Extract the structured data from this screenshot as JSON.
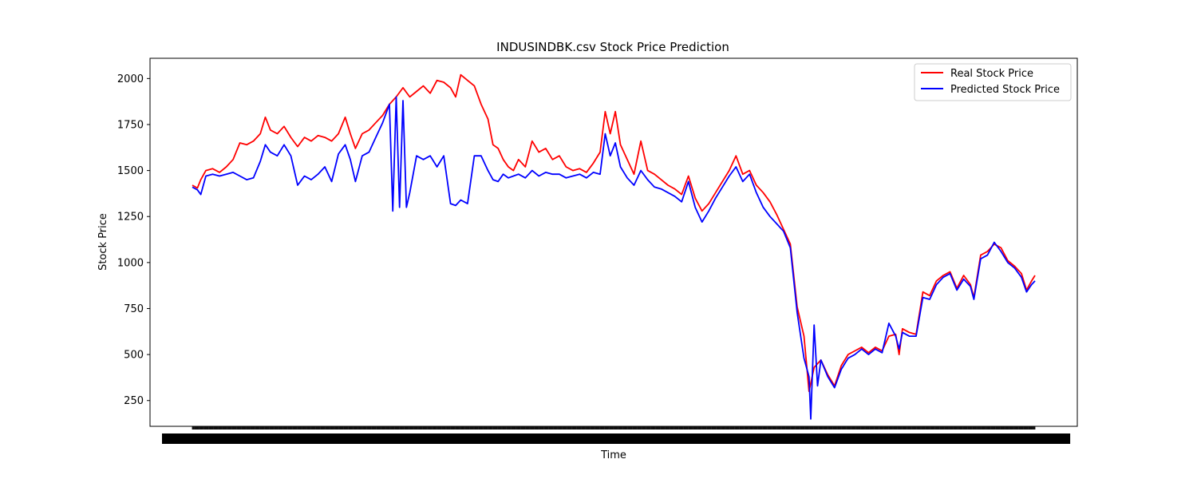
{
  "chart_data": {
    "type": "line",
    "title": "INDUSINDBK.csv Stock Price Prediction",
    "xlabel": "Time",
    "ylabel": "Stock Price",
    "ylim": [
      110,
      2110
    ],
    "yticks": [
      250,
      500,
      750,
      1000,
      1250,
      1500,
      1750,
      2000
    ],
    "x_count": 1238,
    "grid": false,
    "legend": "top-right",
    "series": [
      {
        "name": "Real Stock Price",
        "color": "#ff0000",
        "points": [
          [
            0,
            1420
          ],
          [
            15,
            1405
          ],
          [
            25,
            1450
          ],
          [
            40,
            1500
          ],
          [
            60,
            1510
          ],
          [
            80,
            1490
          ],
          [
            100,
            1520
          ],
          [
            120,
            1560
          ],
          [
            140,
            1650
          ],
          [
            160,
            1640
          ],
          [
            180,
            1660
          ],
          [
            200,
            1700
          ],
          [
            215,
            1790
          ],
          [
            230,
            1720
          ],
          [
            250,
            1700
          ],
          [
            270,
            1740
          ],
          [
            290,
            1680
          ],
          [
            310,
            1630
          ],
          [
            330,
            1680
          ],
          [
            350,
            1660
          ],
          [
            370,
            1690
          ],
          [
            390,
            1680
          ],
          [
            410,
            1660
          ],
          [
            430,
            1700
          ],
          [
            450,
            1790
          ],
          [
            465,
            1700
          ],
          [
            480,
            1620
          ],
          [
            500,
            1700
          ],
          [
            520,
            1720
          ],
          [
            540,
            1760
          ],
          [
            560,
            1800
          ],
          [
            580,
            1860
          ],
          [
            600,
            1900
          ],
          [
            620,
            1950
          ],
          [
            640,
            1900
          ],
          [
            660,
            1930
          ],
          [
            680,
            1960
          ],
          [
            700,
            1920
          ],
          [
            720,
            1990
          ],
          [
            740,
            1980
          ],
          [
            760,
            1950
          ],
          [
            775,
            1900
          ],
          [
            790,
            2020
          ],
          [
            810,
            1990
          ],
          [
            830,
            1960
          ],
          [
            850,
            1860
          ],
          [
            870,
            1780
          ],
          [
            885,
            1640
          ],
          [
            900,
            1620
          ],
          [
            915,
            1560
          ],
          [
            930,
            1520
          ],
          [
            945,
            1500
          ],
          [
            960,
            1560
          ],
          [
            980,
            1520
          ],
          [
            1000,
            1660
          ],
          [
            1020,
            1600
          ],
          [
            1040,
            1620
          ],
          [
            1060,
            1560
          ],
          [
            1080,
            1580
          ],
          [
            1100,
            1520
          ],
          [
            1120,
            1500
          ],
          [
            1140,
            1510
          ],
          [
            1160,
            1490
          ],
          [
            1180,
            1540
          ],
          [
            1200,
            1600
          ],
          [
            1215,
            1820
          ],
          [
            1230,
            1700
          ],
          [
            1245,
            1820
          ],
          [
            1260,
            1640
          ],
          [
            1280,
            1560
          ],
          [
            1300,
            1480
          ],
          [
            1320,
            1660
          ],
          [
            1340,
            1500
          ],
          [
            1360,
            1480
          ],
          [
            1380,
            1450
          ],
          [
            1400,
            1420
          ],
          [
            1420,
            1400
          ],
          [
            1440,
            1370
          ],
          [
            1460,
            1470
          ],
          [
            1480,
            1350
          ],
          [
            1500,
            1280
          ],
          [
            1520,
            1320
          ],
          [
            1540,
            1380
          ],
          [
            1560,
            1440
          ],
          [
            1580,
            1500
          ],
          [
            1600,
            1580
          ],
          [
            1620,
            1480
          ],
          [
            1640,
            1500
          ],
          [
            1660,
            1420
          ],
          [
            1680,
            1380
          ],
          [
            1700,
            1330
          ],
          [
            1720,
            1260
          ],
          [
            1740,
            1180
          ],
          [
            1760,
            1100
          ],
          [
            1780,
            760
          ],
          [
            1800,
            600
          ],
          [
            1815,
            300
          ],
          [
            1830,
            430
          ],
          [
            1850,
            470
          ],
          [
            1870,
            390
          ],
          [
            1890,
            330
          ],
          [
            1910,
            440
          ],
          [
            1930,
            500
          ],
          [
            1950,
            520
          ],
          [
            1970,
            540
          ],
          [
            1990,
            510
          ],
          [
            2010,
            540
          ],
          [
            2030,
            520
          ],
          [
            2050,
            600
          ],
          [
            2070,
            610
          ],
          [
            2080,
            500
          ],
          [
            2090,
            640
          ],
          [
            2110,
            620
          ],
          [
            2130,
            610
          ],
          [
            2150,
            840
          ],
          [
            2170,
            820
          ],
          [
            2190,
            900
          ],
          [
            2210,
            930
          ],
          [
            2230,
            950
          ],
          [
            2250,
            860
          ],
          [
            2270,
            930
          ],
          [
            2290,
            880
          ],
          [
            2300,
            810
          ],
          [
            2320,
            1040
          ],
          [
            2340,
            1060
          ],
          [
            2360,
            1100
          ],
          [
            2380,
            1080
          ],
          [
            2400,
            1010
          ],
          [
            2420,
            980
          ],
          [
            2440,
            940
          ],
          [
            2455,
            850
          ],
          [
            2470,
            900
          ],
          [
            2480,
            930
          ]
        ]
      },
      {
        "name": "Predicted Stock Price",
        "color": "#0000ff",
        "points": [
          [
            0,
            1410
          ],
          [
            15,
            1395
          ],
          [
            25,
            1370
          ],
          [
            40,
            1470
          ],
          [
            60,
            1480
          ],
          [
            80,
            1470
          ],
          [
            100,
            1480
          ],
          [
            120,
            1490
          ],
          [
            140,
            1470
          ],
          [
            160,
            1450
          ],
          [
            180,
            1460
          ],
          [
            200,
            1550
          ],
          [
            215,
            1640
          ],
          [
            230,
            1600
          ],
          [
            250,
            1580
          ],
          [
            270,
            1640
          ],
          [
            290,
            1580
          ],
          [
            310,
            1420
          ],
          [
            330,
            1470
          ],
          [
            350,
            1450
          ],
          [
            370,
            1480
          ],
          [
            390,
            1520
          ],
          [
            410,
            1440
          ],
          [
            430,
            1590
          ],
          [
            450,
            1640
          ],
          [
            465,
            1560
          ],
          [
            480,
            1440
          ],
          [
            500,
            1580
          ],
          [
            520,
            1600
          ],
          [
            540,
            1680
          ],
          [
            560,
            1760
          ],
          [
            580,
            1860
          ],
          [
            590,
            1280
          ],
          [
            600,
            1900
          ],
          [
            610,
            1300
          ],
          [
            620,
            1880
          ],
          [
            630,
            1300
          ],
          [
            640,
            1380
          ],
          [
            660,
            1580
          ],
          [
            680,
            1560
          ],
          [
            700,
            1580
          ],
          [
            720,
            1520
          ],
          [
            740,
            1580
          ],
          [
            760,
            1320
          ],
          [
            775,
            1310
          ],
          [
            790,
            1340
          ],
          [
            810,
            1320
          ],
          [
            830,
            1580
          ],
          [
            850,
            1580
          ],
          [
            870,
            1500
          ],
          [
            885,
            1450
          ],
          [
            900,
            1440
          ],
          [
            915,
            1480
          ],
          [
            930,
            1460
          ],
          [
            945,
            1470
          ],
          [
            960,
            1480
          ],
          [
            980,
            1460
          ],
          [
            1000,
            1500
          ],
          [
            1020,
            1470
          ],
          [
            1040,
            1490
          ],
          [
            1060,
            1480
          ],
          [
            1080,
            1480
          ],
          [
            1100,
            1460
          ],
          [
            1120,
            1470
          ],
          [
            1140,
            1480
          ],
          [
            1160,
            1460
          ],
          [
            1180,
            1490
          ],
          [
            1200,
            1480
          ],
          [
            1215,
            1700
          ],
          [
            1230,
            1580
          ],
          [
            1245,
            1650
          ],
          [
            1260,
            1520
          ],
          [
            1280,
            1460
          ],
          [
            1300,
            1420
          ],
          [
            1320,
            1500
          ],
          [
            1340,
            1450
          ],
          [
            1360,
            1410
          ],
          [
            1380,
            1400
          ],
          [
            1400,
            1380
          ],
          [
            1420,
            1360
          ],
          [
            1440,
            1330
          ],
          [
            1460,
            1440
          ],
          [
            1480,
            1300
          ],
          [
            1500,
            1220
          ],
          [
            1520,
            1280
          ],
          [
            1540,
            1350
          ],
          [
            1560,
            1410
          ],
          [
            1580,
            1470
          ],
          [
            1600,
            1520
          ],
          [
            1620,
            1440
          ],
          [
            1640,
            1480
          ],
          [
            1660,
            1380
          ],
          [
            1680,
            1300
          ],
          [
            1700,
            1250
          ],
          [
            1720,
            1210
          ],
          [
            1740,
            1170
          ],
          [
            1760,
            1080
          ],
          [
            1780,
            730
          ],
          [
            1800,
            480
          ],
          [
            1815,
            380
          ],
          [
            1820,
            150
          ],
          [
            1830,
            660
          ],
          [
            1840,
            330
          ],
          [
            1850,
            470
          ],
          [
            1870,
            380
          ],
          [
            1890,
            320
          ],
          [
            1910,
            420
          ],
          [
            1930,
            480
          ],
          [
            1950,
            500
          ],
          [
            1970,
            530
          ],
          [
            1990,
            500
          ],
          [
            2010,
            530
          ],
          [
            2030,
            510
          ],
          [
            2050,
            670
          ],
          [
            2070,
            600
          ],
          [
            2080,
            530
          ],
          [
            2090,
            620
          ],
          [
            2110,
            600
          ],
          [
            2130,
            600
          ],
          [
            2150,
            810
          ],
          [
            2170,
            800
          ],
          [
            2190,
            880
          ],
          [
            2210,
            920
          ],
          [
            2230,
            940
          ],
          [
            2250,
            850
          ],
          [
            2270,
            910
          ],
          [
            2290,
            870
          ],
          [
            2300,
            800
          ],
          [
            2320,
            1020
          ],
          [
            2340,
            1040
          ],
          [
            2360,
            1110
          ],
          [
            2380,
            1060
          ],
          [
            2400,
            1000
          ],
          [
            2420,
            970
          ],
          [
            2440,
            920
          ],
          [
            2455,
            840
          ],
          [
            2470,
            880
          ],
          [
            2480,
            900
          ]
        ]
      }
    ]
  }
}
